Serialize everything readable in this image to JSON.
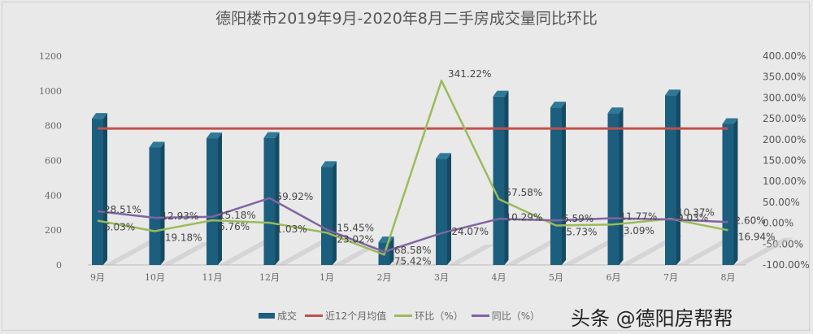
{
  "title": "德阳楼市2019年9月-2020年8月二手房成交量同比环比",
  "legend": {
    "items": [
      {
        "label": "成交",
        "type": "bar",
        "color": "#1b5e7e"
      },
      {
        "label": "近12个月均值",
        "type": "line",
        "color": "#c0504d"
      },
      {
        "label": "环比（%）",
        "type": "line",
        "color": "#9bbb59"
      },
      {
        "label": "同比（%）",
        "type": "line",
        "color": "#8064a2"
      }
    ]
  },
  "watermark": "头条 @德阳房帮帮",
  "chart_data": {
    "type": "bar",
    "title": "德阳楼市2019年9月-2020年8月二手房成交量同比环比",
    "xlabel": "",
    "ylabel": "",
    "categories": [
      "9月",
      "10月",
      "11月",
      "12月",
      "1月",
      "2月",
      "3月",
      "4月",
      "5月",
      "6月",
      "7月",
      "8月"
    ],
    "left_axis": {
      "ylim": [
        0,
        1200
      ],
      "ticks": [
        "0",
        "200",
        "400",
        "600",
        "800",
        "1000",
        "1200"
      ]
    },
    "right_axis": {
      "ylim": [
        -100,
        400
      ],
      "ticks": [
        "-100.00%",
        "-50.00%",
        "0.00%",
        "50.00%",
        "100.00%",
        "150.00%",
        "200.00%",
        "250.00%",
        "300.00%",
        "350.00%",
        "400.00%"
      ]
    },
    "series": [
      {
        "name": "成交",
        "type": "bar",
        "axis": "left",
        "color": "#1b5e7e",
        "values": [
          840,
          675,
          728,
          730,
          563,
          130,
          610,
          968,
          905,
          872,
          975,
          810
        ]
      },
      {
        "name": "近12个月均值",
        "type": "line",
        "axis": "left",
        "color": "#c0504d",
        "values": [
          784,
          784,
          784,
          784,
          784,
          784,
          784,
          784,
          784,
          784,
          784,
          784
        ]
      },
      {
        "name": "环比（%）",
        "type": "line",
        "axis": "right",
        "color": "#9bbb59",
        "values": [
          6.03,
          -19.18,
          6.76,
          1.03,
          -23.02,
          -75.42,
          341.22,
          57.58,
          -5.73,
          -3.09,
          10.37,
          -16.94
        ],
        "labels": [
          "6.03%",
          "-19.18%",
          "6.76%",
          "1.03%",
          "-23.02%",
          "-75.42%",
          "341.22%",
          "57.58%",
          "-5.73%",
          "-3.09%",
          "10.37%",
          "-16.94%"
        ]
      },
      {
        "name": "同比（%）",
        "type": "line",
        "axis": "right",
        "color": "#8064a2",
        "values": [
          28.51,
          12.93,
          15.18,
          59.92,
          -15.45,
          -68.58,
          -24.07,
          10.29,
          6.59,
          11.77,
          9.03,
          2.6
        ],
        "labels": [
          "28.51%",
          "12.93%",
          "15.18%",
          "59.92%",
          "-15.45%",
          "-68.58%",
          "-24.07%",
          "10.29%",
          "6.59%",
          "11.77%",
          "9.03%",
          "2.60%"
        ]
      }
    ],
    "grid": false,
    "legend_position": "bottom"
  }
}
